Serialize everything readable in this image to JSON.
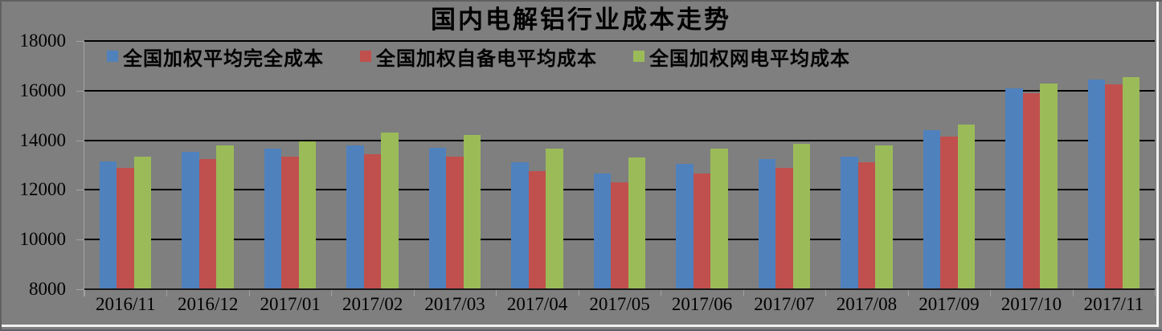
{
  "window": {
    "background": "#7F7F7F"
  },
  "chart_data": {
    "type": "bar",
    "title": "国内电解铝行业成本走势",
    "categories": [
      "2016/11",
      "2016/12",
      "2017/01",
      "2017/02",
      "2017/03",
      "2017/04",
      "2017/05",
      "2017/06",
      "2017/07",
      "2017/08",
      "2017/09",
      "2017/10",
      "2017/11"
    ],
    "series": [
      {
        "name": "全国加权平均完全成本",
        "color": "#4F81BD",
        "values": [
          13150,
          13550,
          13650,
          13800,
          13700,
          13100,
          12650,
          13050,
          13250,
          13350,
          14400,
          16100,
          16450
        ]
      },
      {
        "name": "全国加权自备电平均成本",
        "color": "#C0504D",
        "values": [
          12900,
          13250,
          13350,
          13450,
          13350,
          12750,
          12300,
          12650,
          12900,
          13100,
          14150,
          15900,
          16250
        ]
      },
      {
        "name": "全国加权网电平均成本",
        "color": "#9BBB59",
        "values": [
          13350,
          13800,
          13950,
          14300,
          14200,
          13650,
          13300,
          13650,
          13850,
          13800,
          14650,
          16300,
          16550
        ]
      }
    ],
    "xlabel": "",
    "ylabel": "",
    "ylim": [
      8000,
      18000
    ],
    "yticks": [
      8000,
      10000,
      12000,
      14000,
      16000,
      18000
    ],
    "grid": "horizontal",
    "gridline_color": "#000000",
    "axis_color": "#A2A2A2",
    "legend_position": "top-left-inside",
    "plot_background": "#7F7F7F"
  }
}
